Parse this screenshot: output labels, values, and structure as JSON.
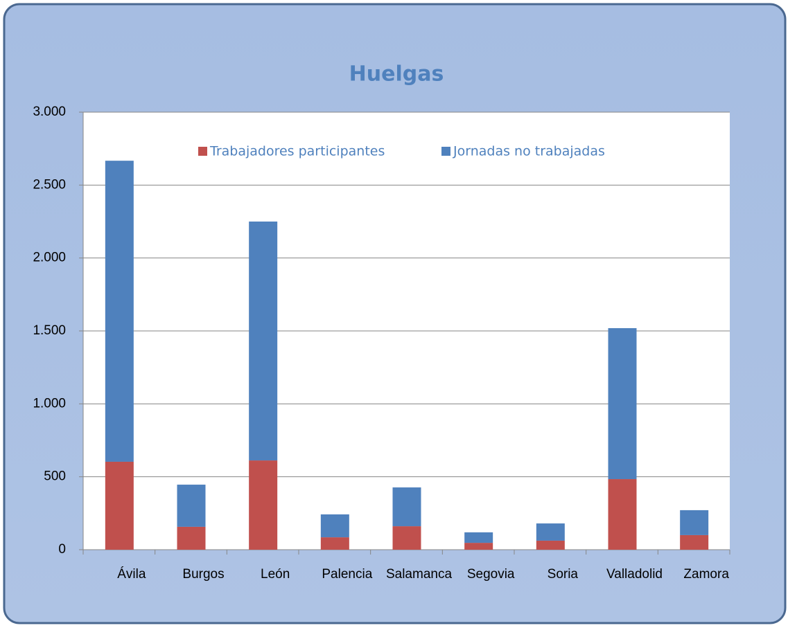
{
  "chart_data": {
    "type": "stacked_bar",
    "title": "Huelgas",
    "categories": [
      "Ávila",
      "Burgos",
      "León",
      "Palencia",
      "Salamanca",
      "Segovia",
      "Soria",
      "Valladolid",
      "Zamora"
    ],
    "series": [
      {
        "name": "Trabajadores participantes",
        "color": "#c0504d",
        "values": [
          603,
          157,
          612,
          85,
          161,
          47,
          62,
          484,
          100
        ]
      },
      {
        "name": "Jornadas no trabajadas",
        "color": "#4f81bd",
        "values": [
          2064,
          289,
          1638,
          157,
          266,
          72,
          118,
          1035,
          171
        ]
      }
    ],
    "ylim": [
      0,
      3000
    ],
    "yticks": [
      0,
      500,
      {
        "value": 1000,
        "label": "1.000"
      },
      {
        "value": 1500,
        "label": "1.500"
      },
      {
        "value": 2000,
        "label": "2.000"
      },
      {
        "value": 2500,
        "label": "2.500"
      },
      {
        "value": 3000,
        "label": "3.000"
      }
    ],
    "grid": true
  }
}
